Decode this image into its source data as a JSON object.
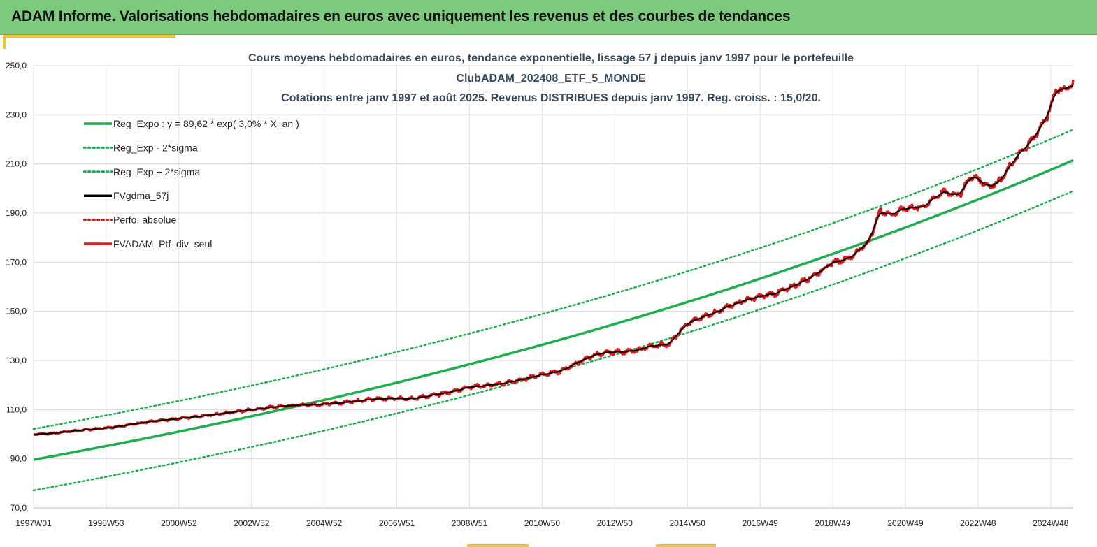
{
  "header": {
    "title": "ADAM Informe. Valorisations hebdomadaires en euros avec uniquement les revenus et des courbes de tendances"
  },
  "colors": {
    "header_bg": "#7dc97d",
    "accent": "#f2c12e",
    "green": "#1fad4e",
    "black": "#000000",
    "red": "#e41a1a"
  },
  "chart_data": {
    "type": "line",
    "title": [
      "Cours moyens hebdomadaires  en euros, tendance exponentielle, lissage 57 j depuis janv 1997 pour le portefeuille",
      "ClubADAM_202408_ETF_5_MONDE",
      "Cotations  entre janv 1997 et août 2025. Revenus DISTRIBUES depuis janv 1997. Reg. croiss. : 15,0/20."
    ],
    "ylim": [
      70,
      250
    ],
    "y_ticks": [
      "250,0",
      "230,0",
      "210,0",
      "190,0",
      "170,0",
      "150,0",
      "130,0",
      "110,0",
      "90,0",
      "70,0"
    ],
    "x_range": [
      1997.0,
      2025.62
    ],
    "x_ticks": [
      {
        "label": "1997W01",
        "x": 1997.0
      },
      {
        "label": "1998W53",
        "x": 1999.0
      },
      {
        "label": "2000W52",
        "x": 2001.0
      },
      {
        "label": "2002W52",
        "x": 2003.0
      },
      {
        "label": "2004W52",
        "x": 2005.0
      },
      {
        "label": "2006W51",
        "x": 2007.0
      },
      {
        "label": "2008W51",
        "x": 2009.0
      },
      {
        "label": "2010W50",
        "x": 2011.0
      },
      {
        "label": "2012W50",
        "x": 2013.0
      },
      {
        "label": "2014W50",
        "x": 2015.0
      },
      {
        "label": "2016W49",
        "x": 2017.0
      },
      {
        "label": "2018W49",
        "x": 2019.0
      },
      {
        "label": "2020W49",
        "x": 2021.0
      },
      {
        "label": "2022W48",
        "x": 2023.0
      },
      {
        "label": "2024W48",
        "x": 2025.0
      }
    ],
    "grid": true,
    "legend_position": "top-left",
    "regression": {
      "a": 89.62,
      "rate": 0.03,
      "sigma_offset": 12.5
    },
    "series": [
      {
        "name": "Reg_Expo : y = 89,62 * exp( 3,0% *  X_an )",
        "kind": "reg",
        "color": "#1fad4e",
        "style": "solid"
      },
      {
        "name": "Reg_Exp - 2*sigma",
        "kind": "reg_minus",
        "color": "#1fad4e",
        "style": "dotted"
      },
      {
        "name": "Reg_Exp + 2*sigma",
        "kind": "reg_plus",
        "color": "#1fad4e",
        "style": "dotted"
      },
      {
        "name": "FVgdma_57j",
        "kind": "smooth",
        "color": "#000000",
        "style": "solid"
      },
      {
        "name": "Perfo. absolue",
        "kind": "perfo",
        "color": "#e41a1a",
        "style": "dotted"
      },
      {
        "name": "FVADAM_Ptf_div_seul",
        "kind": "price",
        "color": "#e41a1a",
        "style": "solid"
      }
    ],
    "price_points": [
      [
        1997.0,
        100.0
      ],
      [
        1997.5,
        100.3
      ],
      [
        1998.0,
        101.2
      ],
      [
        1999.0,
        102.5
      ],
      [
        2000.0,
        104.7
      ],
      [
        2001.0,
        106.4
      ],
      [
        2002.0,
        108.0
      ],
      [
        2003.0,
        110.0
      ],
      [
        2004.0,
        111.7
      ],
      [
        2005.0,
        112.2
      ],
      [
        2005.5,
        112.8
      ],
      [
        2006.0,
        113.8
      ],
      [
        2006.5,
        114.4
      ],
      [
        2007.0,
        114.5
      ],
      [
        2007.5,
        114.7
      ],
      [
        2008.0,
        115.8
      ],
      [
        2008.5,
        117.2
      ],
      [
        2009.0,
        119.3
      ],
      [
        2009.5,
        119.8
      ],
      [
        2010.0,
        120.8
      ],
      [
        2010.5,
        122.4
      ],
      [
        2011.0,
        124.4
      ],
      [
        2011.5,
        125.5
      ],
      [
        2012.0,
        129.3
      ],
      [
        2012.5,
        132.5
      ],
      [
        2013.0,
        133.5
      ],
      [
        2013.5,
        133.7
      ],
      [
        2014.0,
        135.8
      ],
      [
        2014.5,
        136.8
      ],
      [
        2015.0,
        145.0
      ],
      [
        2015.5,
        148.2
      ],
      [
        2016.0,
        151.0
      ],
      [
        2016.5,
        154.2
      ],
      [
        2017.0,
        156.0
      ],
      [
        2017.5,
        157.6
      ],
      [
        2018.0,
        160.9
      ],
      [
        2018.5,
        164.8
      ],
      [
        2019.0,
        169.8
      ],
      [
        2019.5,
        172.0
      ],
      [
        2020.0,
        178.5
      ],
      [
        2020.3,
        191.0
      ],
      [
        2020.6,
        189.3
      ],
      [
        2021.0,
        192.0
      ],
      [
        2021.5,
        192.5
      ],
      [
        2022.0,
        198.5
      ],
      [
        2022.5,
        197.5
      ],
      [
        2022.8,
        205.0
      ],
      [
        2023.0,
        204.0
      ],
      [
        2023.3,
        200.8
      ],
      [
        2023.6,
        203.0
      ],
      [
        2024.0,
        211.5
      ],
      [
        2024.5,
        220.0
      ],
      [
        2024.9,
        229.0
      ],
      [
        2025.15,
        240.5
      ],
      [
        2025.4,
        240.2
      ],
      [
        2025.62,
        243.0
      ]
    ]
  }
}
